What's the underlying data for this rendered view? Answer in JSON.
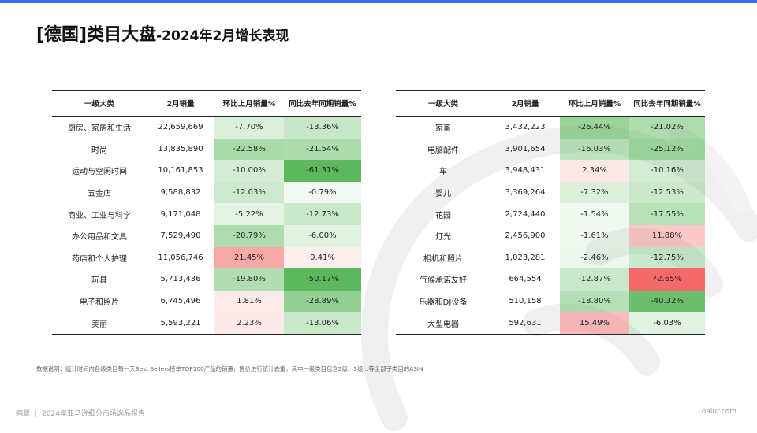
{
  "header": {
    "title_main": "[德国]类目大盘",
    "title_sub": "-2024年2月增长表现"
  },
  "colors": {
    "accent_bar": "#2f6ff0",
    "positive_strong": "#f46a6a",
    "negative_strong": "#5cb85c"
  },
  "table_left": {
    "headers": [
      "一级大类",
      "2月销量",
      "环比上月销量%",
      "同比去年同期销量%"
    ],
    "rows": [
      {
        "category": "厨房、家居和生活",
        "sales": "22,659,669",
        "mom": "-7.70%",
        "yoy": "-13.36%"
      },
      {
        "category": "时尚",
        "sales": "13,835,890",
        "mom": "-22.58%",
        "yoy": "-21.54%"
      },
      {
        "category": "运动与空闲时间",
        "sales": "10,161,853",
        "mom": "-10.00%",
        "yoy": "-61.31%"
      },
      {
        "category": "五金店",
        "sales": "9,588,832",
        "mom": "-12.03%",
        "yoy": "-0.79%"
      },
      {
        "category": "商业、工业与科学",
        "sales": "9,171,048",
        "mom": "-5.22%",
        "yoy": "-12.73%"
      },
      {
        "category": "办公用品和文具",
        "sales": "7,529,490",
        "mom": "-20.79%",
        "yoy": "-6.00%"
      },
      {
        "category": "药店和个人护理",
        "sales": "11,056,746",
        "mom": "21.45%",
        "yoy": "0.41%"
      },
      {
        "category": "玩具",
        "sales": "5,713,436",
        "mom": "-19.80%",
        "yoy": "-50.17%"
      },
      {
        "category": "电子和照片",
        "sales": "6,745,496",
        "mom": "1.81%",
        "yoy": "-28.89%"
      },
      {
        "category": "美丽",
        "sales": "5,593,221",
        "mom": "2.23%",
        "yoy": "-13.06%"
      }
    ]
  },
  "table_right": {
    "headers": [
      "一级大类",
      "2月销量",
      "环比上月销量%",
      "同比去年同期销量%"
    ],
    "rows": [
      {
        "category": "家畜",
        "sales": "3,432,223",
        "mom": "-26.44%",
        "yoy": "-21.02%"
      },
      {
        "category": "电脑配件",
        "sales": "3,901,654",
        "mom": "-16.03%",
        "yoy": "-25.12%"
      },
      {
        "category": "车",
        "sales": "3,948,431",
        "mom": "2.34%",
        "yoy": "-10.16%"
      },
      {
        "category": "婴儿",
        "sales": "3,369,264",
        "mom": "-7.32%",
        "yoy": "-12.53%"
      },
      {
        "category": "花园",
        "sales": "2,724,440",
        "mom": "-1.54%",
        "yoy": "-17.55%"
      },
      {
        "category": "灯光",
        "sales": "2,456,900",
        "mom": "-1.61%",
        "yoy": "11.88%"
      },
      {
        "category": "相机和照片",
        "sales": "1,023,281",
        "mom": "-2.46%",
        "yoy": "-12.75%"
      },
      {
        "category": "气候承诺友好",
        "sales": "664,554",
        "mom": "-12.87%",
        "yoy": "72.65%"
      },
      {
        "category": "乐器和DJ设备",
        "sales": "510,158",
        "mom": "-18.80%",
        "yoy": "-40.32%"
      },
      {
        "category": "大型电器",
        "sales": "592,631",
        "mom": "15.49%",
        "yoy": "-6.03%"
      }
    ]
  },
  "note": "数据说明：统计时间内各级类目每一天Best Sellers榜单TOP100产品的销量，售价进行统计去重，其中一级类目包含2级、3级...等全部子类目的ASIN",
  "footer": {
    "brand": "鸥鹭",
    "report": "2024年亚马逊细分市场选品报告",
    "site": "oalur.com"
  }
}
